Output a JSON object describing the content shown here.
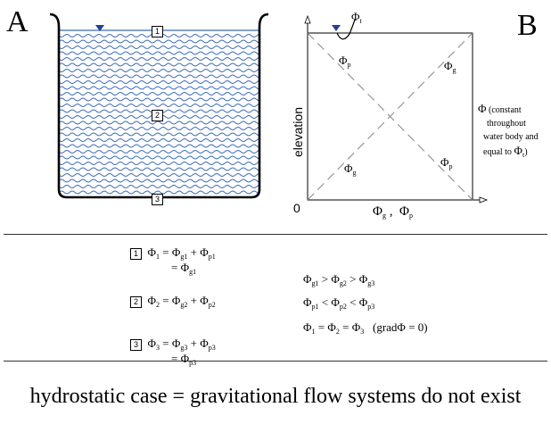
{
  "panel_a": {
    "letter": "A",
    "markers": [
      "1",
      "2",
      "3"
    ]
  },
  "panel_b": {
    "letter": "B",
    "y_axis_label": "elevation",
    "origin_label": "0",
    "phi_t_label": "Φ",
    "phi_t_sub": "t",
    "phi_p_top": "Φ",
    "phi_p_top_sub": "p",
    "phi_g_top": "Φ",
    "phi_g_top_sub": "g",
    "phi_g_bottom": "Φ",
    "phi_g_bottom_sub": "g",
    "phi_p_bottom": "Φ",
    "phi_p_bottom_sub": "p",
    "x_axis_label_g": "Φ",
    "x_axis_label_g_sub": "g",
    "x_axis_sep": " ,  ",
    "x_axis_label_p": "Φ",
    "x_axis_label_p_sub": "p",
    "note_symbol": "Φ",
    "note_text_1": "(constant",
    "note_text_2": "throughout",
    "note_text_3": "water body and",
    "note_text_4": "equal to",
    "note_phi": "Φ",
    "note_phi_sub": "t",
    "note_close": ")"
  },
  "equations": {
    "eq1_box": "1",
    "eq1_lhs": "Φ",
    "eq1_lhs_sub": "1",
    "eq1_eq": "=",
    "eq1_t1": "Φ",
    "eq1_t1_sub": "g1",
    "eq1_plus": "+",
    "eq1_t2": "Φ",
    "eq1_t2_sub": "p1",
    "eq1_eq2": "=",
    "eq1_t3": "Φ",
    "eq1_t3_sub": "g1",
    "eq2_box": "2",
    "eq2_lhs": "Φ",
    "eq2_lhs_sub": "2",
    "eq2_eq": "=",
    "eq2_t1": "Φ",
    "eq2_t1_sub": "g2",
    "eq2_plus": "+",
    "eq2_t2": "Φ",
    "eq2_t2_sub": "p2",
    "eq3_box": "3",
    "eq3_lhs": "Φ",
    "eq3_lhs_sub": "3",
    "eq3_eq": "=",
    "eq3_t1": "Φ",
    "eq3_t1_sub": "g3",
    "eq3_plus": "+",
    "eq3_t2": "Φ",
    "eq3_t2_sub": "p3",
    "eq3_eq2": "=",
    "eq3_t3": "Φ",
    "eq3_t3_sub": "p3",
    "rel1_a": "Φ",
    "rel1_a_sub": "g1",
    "rel1_op1": ">",
    "rel1_b": "Φ",
    "rel1_b_sub": "g2",
    "rel1_op2": ">",
    "rel1_c": "Φ",
    "rel1_c_sub": "g3",
    "rel2_a": "Φ",
    "rel2_a_sub": "p1",
    "rel2_op1": "<",
    "rel2_b": "Φ",
    "rel2_b_sub": "p2",
    "rel2_op2": "<",
    "rel2_c": "Φ",
    "rel2_c_sub": "p3",
    "rel3_a": "Φ",
    "rel3_a_sub": "1",
    "rel3_op1": "=",
    "rel3_b": "Φ",
    "rel3_b_sub": "2",
    "rel3_op2": "=",
    "rel3_c": "Φ",
    "rel3_c_sub": "3",
    "rel3_grad": "(grad",
    "rel3_grad_phi": "Φ",
    "rel3_grad_end": "= 0)"
  },
  "caption": "hydrostatic case = gravitational flow systems do not exist",
  "colors": {
    "water": "#3a6ab8",
    "water_bg": "#ffffff",
    "lines": "#000000",
    "dash": "#777777"
  }
}
